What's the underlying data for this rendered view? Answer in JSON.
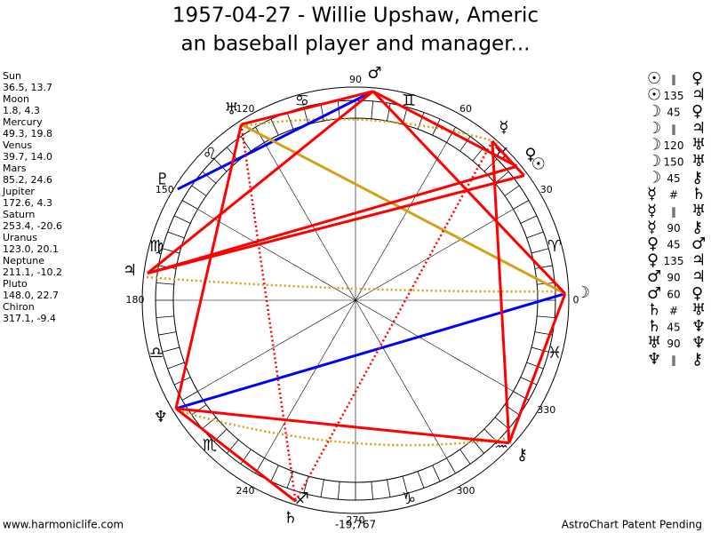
{
  "header": {
    "title_line1": "1957-04-27 - Willie Upshaw, Americ",
    "title_line2": "an baseball player and manager..."
  },
  "planets": [
    {
      "name": "Sun",
      "coords": "36.5, 13.7",
      "glyph": "☉"
    },
    {
      "name": "Moon",
      "coords": "1.8, 4.3",
      "glyph": "☽"
    },
    {
      "name": "Mercury",
      "coords": "49.3, 19.8",
      "glyph": "☿"
    },
    {
      "name": "Venus",
      "coords": "39.7, 14.0",
      "glyph": "♀"
    },
    {
      "name": "Mars",
      "coords": "85.2, 24.6",
      "glyph": "♂"
    },
    {
      "name": "Jupiter",
      "coords": "172.6, 4.3",
      "glyph": "♃"
    },
    {
      "name": "Saturn",
      "coords": "253.4, -20.6",
      "glyph": "♄"
    },
    {
      "name": "Uranus",
      "coords": "123.0, 20.1",
      "glyph": "♅"
    },
    {
      "name": "Neptune",
      "coords": "211.1, -10.2",
      "glyph": "♆"
    },
    {
      "name": "Pluto",
      "coords": "148.0, 22.7",
      "glyph": "♇"
    },
    {
      "name": "Chiron",
      "coords": "317.1, -9.4",
      "glyph": "⚷"
    }
  ],
  "signs": [
    "♈",
    "♉",
    "♊",
    "♋",
    "♌",
    "♍",
    "♎",
    "♏",
    "♐",
    "♑",
    "♒",
    "♓"
  ],
  "degree_labels": [
    0,
    30,
    60,
    90,
    120,
    150,
    180,
    240,
    270,
    300,
    330
  ],
  "aspects": [
    {
      "from": "☉",
      "aspect": "∥",
      "to": "♀"
    },
    {
      "from": "☉",
      "aspect": "135",
      "to": "♃"
    },
    {
      "from": "☽",
      "aspect": "45",
      "to": "♀"
    },
    {
      "from": "☽",
      "aspect": "∥",
      "to": "♃"
    },
    {
      "from": "☽",
      "aspect": "120",
      "to": "♅"
    },
    {
      "from": "☽",
      "aspect": "150",
      "to": "♅"
    },
    {
      "from": "☽",
      "aspect": "45",
      "to": "⚷"
    },
    {
      "from": "☿",
      "aspect": "#",
      "to": "♄"
    },
    {
      "from": "☿",
      "aspect": "∥",
      "to": "♅"
    },
    {
      "from": "☿",
      "aspect": "90",
      "to": "⚷"
    },
    {
      "from": "♀",
      "aspect": "45",
      "to": "♂"
    },
    {
      "from": "♀",
      "aspect": "135",
      "to": "♃"
    },
    {
      "from": "♂",
      "aspect": "90",
      "to": "♃"
    },
    {
      "from": "♂",
      "aspect": "60",
      "to": "♀"
    },
    {
      "from": "♄",
      "aspect": "#",
      "to": "♅"
    },
    {
      "from": "♄",
      "aspect": "45",
      "to": "♆"
    },
    {
      "from": "♅",
      "aspect": "90",
      "to": "♆"
    },
    {
      "from": "♆",
      "aspect": "∥",
      "to": "⚷"
    }
  ],
  "footer": {
    "site": "www.harmoniclife.com",
    "number": "-19,767",
    "notice": "AstroChart Patent Pending"
  }
}
